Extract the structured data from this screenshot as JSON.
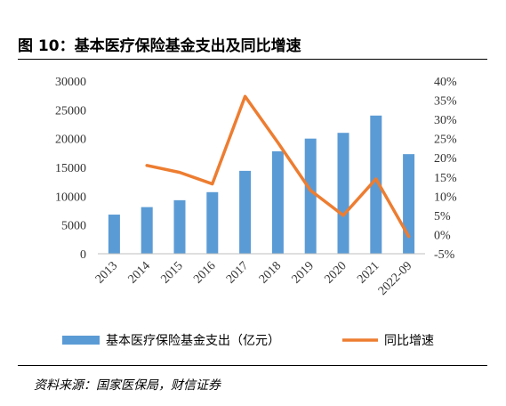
{
  "figure": {
    "title": "图 10：基本医疗保险基金支出及同比增速",
    "source": "资料来源：国家医保局，财信证券"
  },
  "chart_data": {
    "type": "bar",
    "categories": [
      "2013",
      "2014",
      "2015",
      "2016",
      "2017",
      "2018",
      "2019",
      "2020",
      "2021",
      "2022-09"
    ],
    "series": [
      {
        "name": "基本医疗保险基金支出（亿元）",
        "type": "bar",
        "axis": "left",
        "color": "#5b9bd5",
        "values": [
          6800,
          8100,
          9300,
          10700,
          14400,
          17800,
          20000,
          21000,
          24000,
          17300
        ]
      },
      {
        "name": "同比增速",
        "type": "line",
        "axis": "right",
        "color": "#ed7d31",
        "values": [
          null,
          18.0,
          16.2,
          13.2,
          36.0,
          24.0,
          11.5,
          5.0,
          14.5,
          -0.5
        ]
      }
    ],
    "y_left": {
      "min": 0,
      "max": 30000,
      "ticks": [
        "0",
        "5000",
        "10000",
        "15000",
        "20000",
        "25000",
        "30000"
      ]
    },
    "y_right": {
      "min": -5,
      "max": 40,
      "ticks": [
        "-5%",
        "0%",
        "5%",
        "10%",
        "15%",
        "20%",
        "25%",
        "30%",
        "35%",
        "40%"
      ]
    },
    "legend": {
      "position": "bottom"
    },
    "grid": false
  }
}
